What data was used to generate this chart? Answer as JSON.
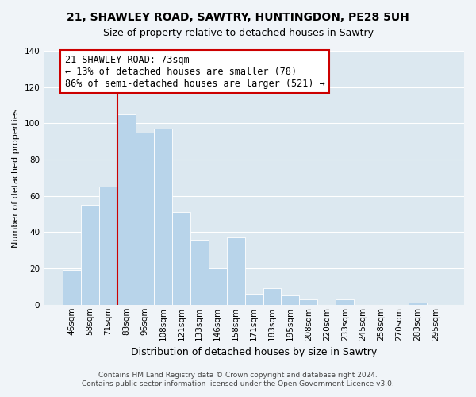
{
  "title": "21, SHAWLEY ROAD, SAWTRY, HUNTINGDON, PE28 5UH",
  "subtitle": "Size of property relative to detached houses in Sawtry",
  "xlabel": "Distribution of detached houses by size in Sawtry",
  "ylabel": "Number of detached properties",
  "categories": [
    "46sqm",
    "58sqm",
    "71sqm",
    "83sqm",
    "96sqm",
    "108sqm",
    "121sqm",
    "133sqm",
    "146sqm",
    "158sqm",
    "171sqm",
    "183sqm",
    "195sqm",
    "208sqm",
    "220sqm",
    "233sqm",
    "245sqm",
    "258sqm",
    "270sqm",
    "283sqm",
    "295sqm"
  ],
  "values": [
    19,
    55,
    65,
    105,
    95,
    97,
    51,
    36,
    20,
    37,
    6,
    9,
    5,
    3,
    0,
    3,
    0,
    0,
    0,
    1,
    0
  ],
  "bar_color": "#b8d4ea",
  "vline_color": "#cc0000",
  "vline_index": 2.5,
  "annotation_text": "21 SHAWLEY ROAD: 73sqm\n← 13% of detached houses are smaller (78)\n86% of semi-detached houses are larger (521) →",
  "annotation_box_edge": "#cc0000",
  "ylim": [
    0,
    140
  ],
  "yticks": [
    0,
    20,
    40,
    60,
    80,
    100,
    120,
    140
  ],
  "footer_line1": "Contains HM Land Registry data © Crown copyright and database right 2024.",
  "footer_line2": "Contains public sector information licensed under the Open Government Licence v3.0.",
  "bg_color": "#f0f4f8",
  "plot_bg_color": "#dce8f0",
  "grid_color": "#ffffff",
  "title_fontsize": 10,
  "subtitle_fontsize": 9,
  "annotation_fontsize": 8.5,
  "ylabel_fontsize": 8,
  "xlabel_fontsize": 9,
  "tick_fontsize": 7.5
}
